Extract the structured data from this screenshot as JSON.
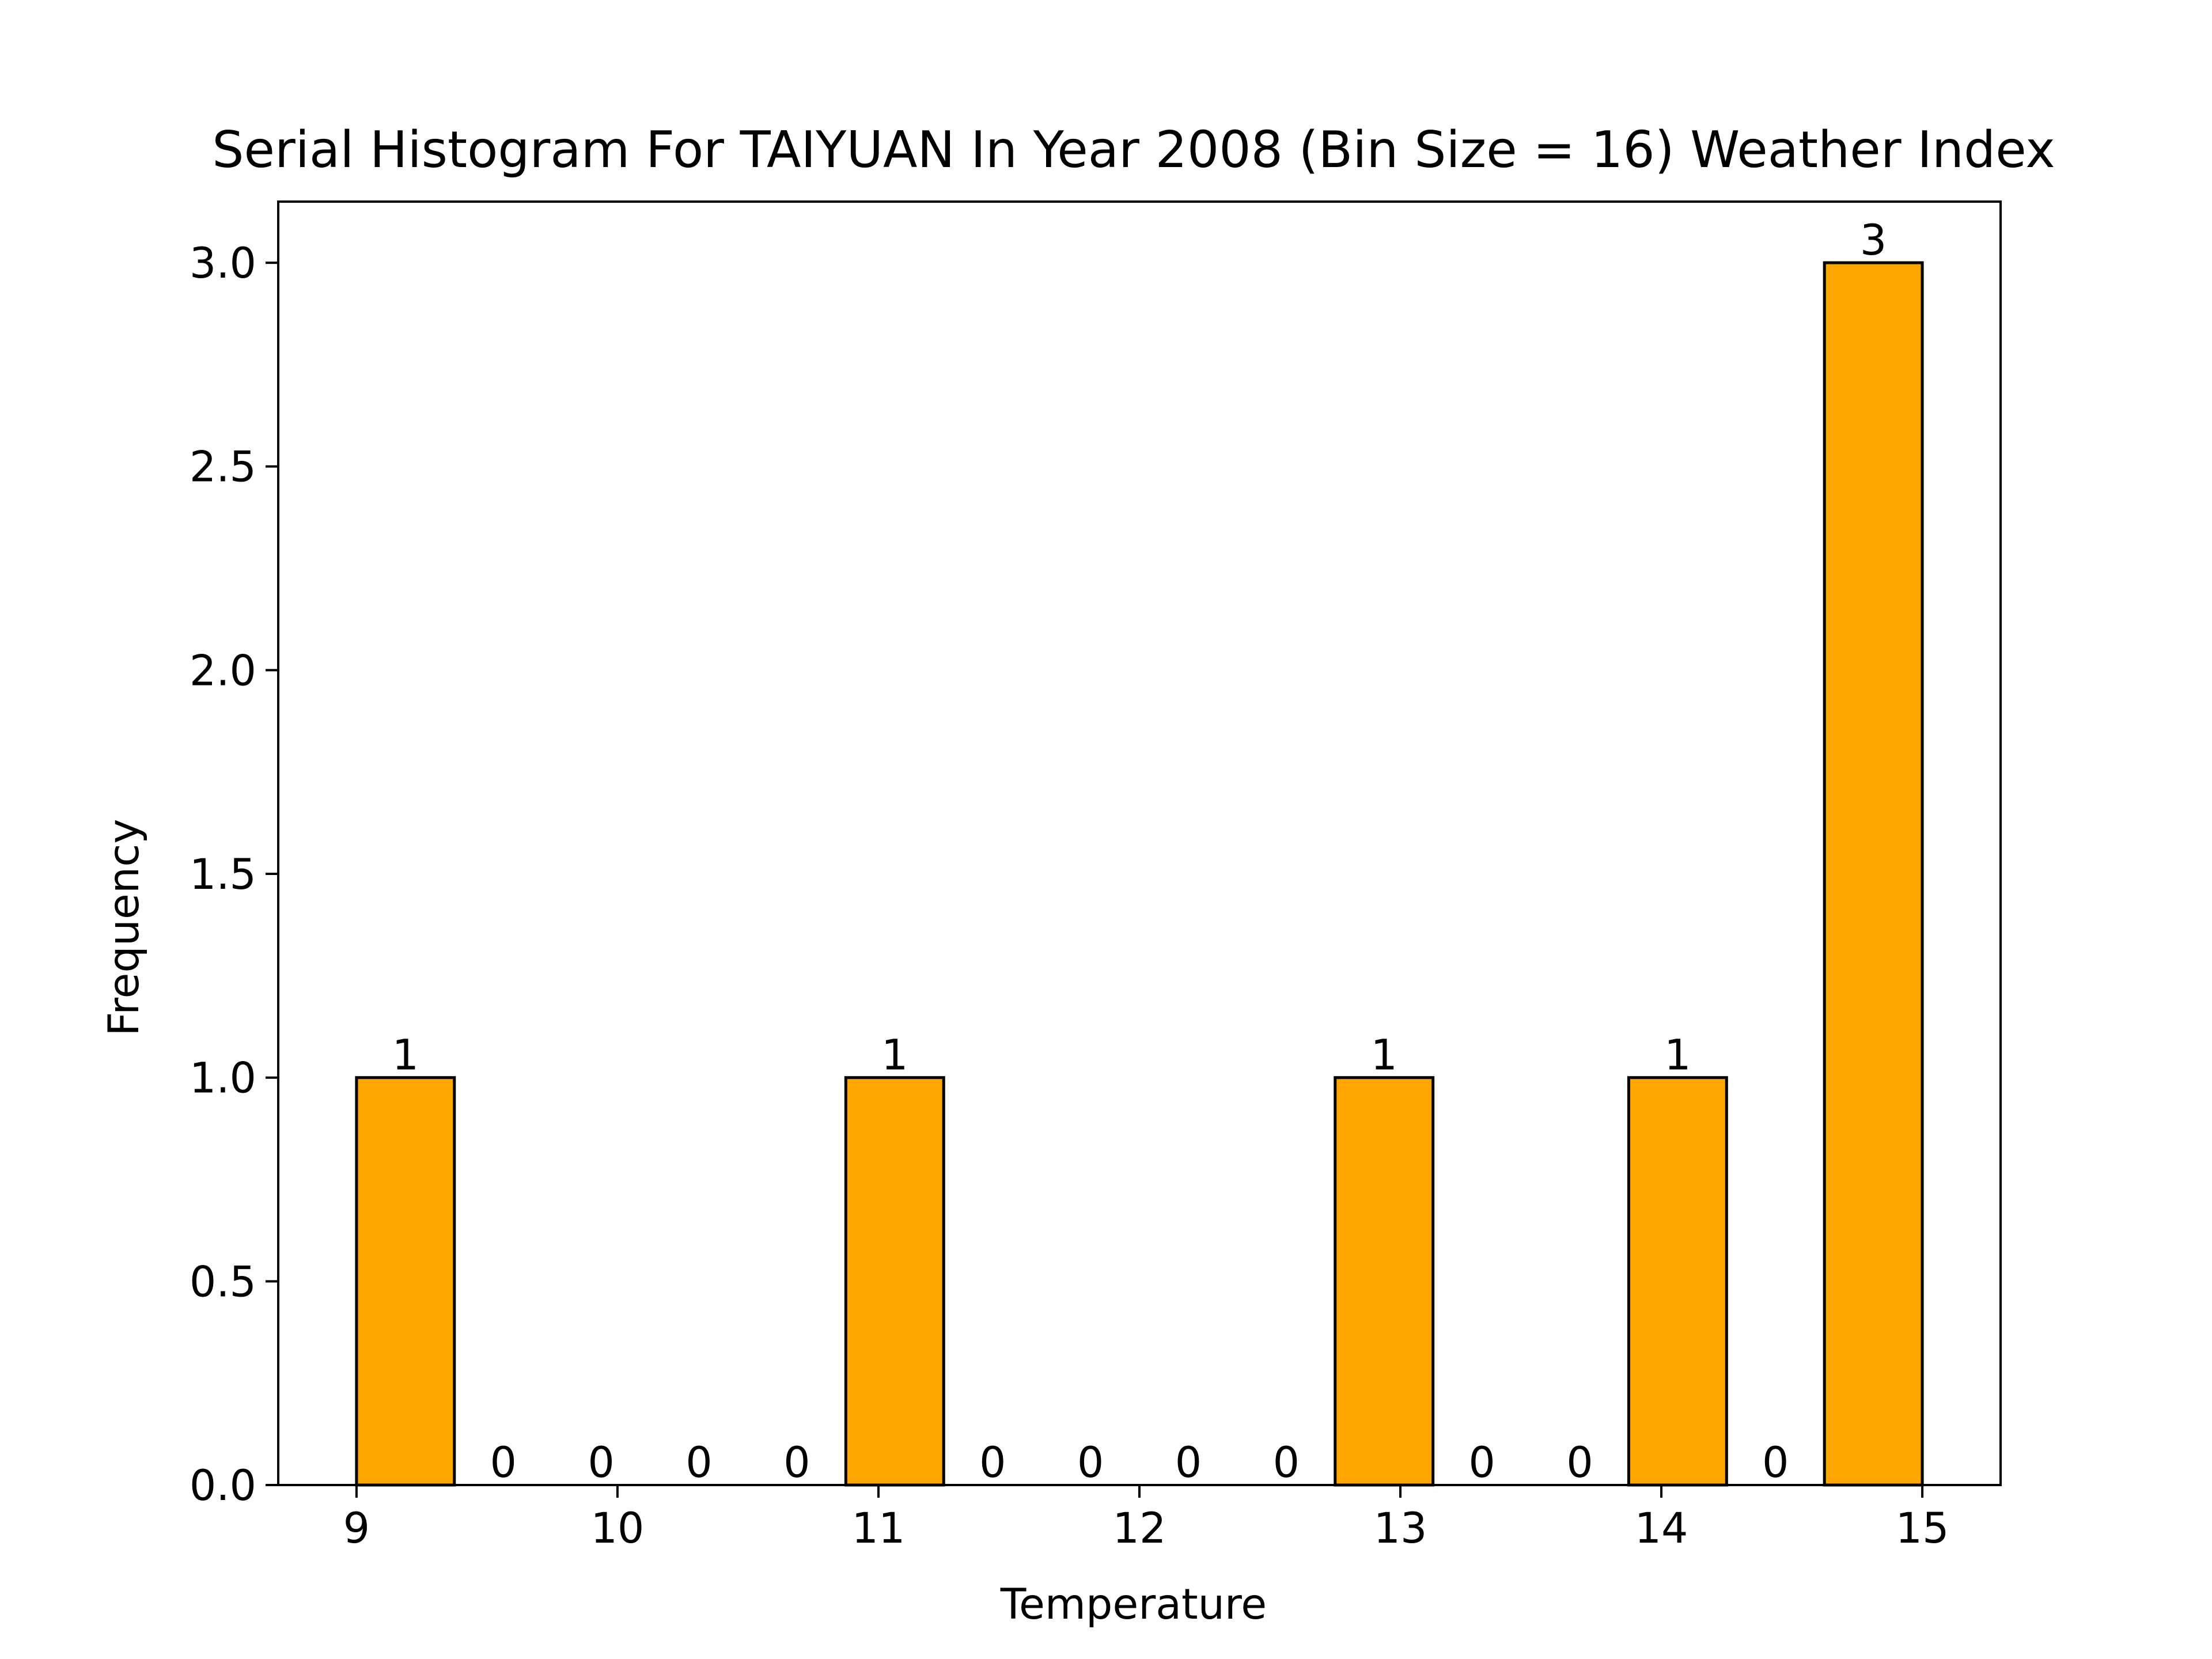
{
  "chart_data": {
    "type": "bar",
    "title": "Serial Histogram For TAIYUAN In Year 2008 (Bin Size = 16) Weather Index",
    "xlabel": "Temperature",
    "ylabel": "Frequency",
    "bin_edges": [
      9,
      9.375,
      9.75,
      10.125,
      10.5,
      10.875,
      11.25,
      11.625,
      12,
      12.375,
      12.75,
      13.125,
      13.5,
      13.875,
      14.25,
      14.625,
      15
    ],
    "values": [
      1,
      0,
      0,
      0,
      0,
      1,
      0,
      0,
      0,
      0,
      1,
      0,
      0,
      1,
      0,
      3
    ],
    "data_labels": [
      "1",
      "0",
      "0",
      "0",
      "0",
      "1",
      "0",
      "0",
      "0",
      "0",
      "1",
      "0",
      "0",
      "1",
      "0",
      "3"
    ],
    "xlim": [
      8.7,
      15.3
    ],
    "ylim": [
      0,
      3.15
    ],
    "x_ticks": [
      9,
      10,
      11,
      12,
      13,
      14,
      15
    ],
    "x_tick_labels": [
      "9",
      "10",
      "11",
      "12",
      "13",
      "14",
      "15"
    ],
    "y_ticks": [
      0,
      0.5,
      1,
      1.5,
      2,
      2.5,
      3
    ],
    "y_tick_labels": [
      "0.0",
      "0.5",
      "1.0",
      "1.5",
      "2.0",
      "2.5",
      "3.0"
    ],
    "bar_color": "#FFA500",
    "edge_color": "#000000",
    "grid": false,
    "legend": "none"
  }
}
